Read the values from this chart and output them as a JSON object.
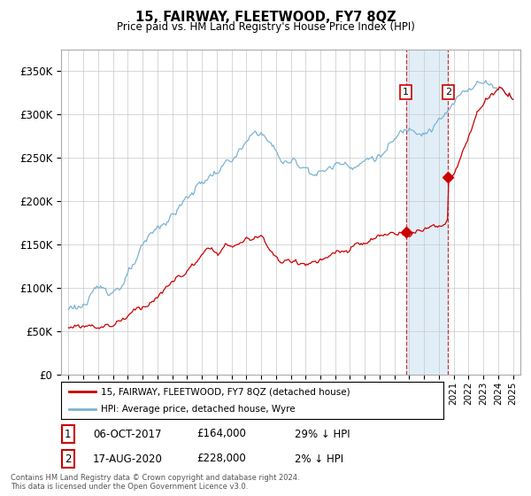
{
  "title": "15, FAIRWAY, FLEETWOOD, FY7 8QZ",
  "subtitle": "Price paid vs. HM Land Registry's House Price Index (HPI)",
  "hpi_color": "#7ab3d4",
  "price_color": "#cc0000",
  "sale1_date": 2017.77,
  "sale1_price": 164000,
  "sale1_label": "1",
  "sale2_date": 2020.63,
  "sale2_price": 228000,
  "sale2_label": "2",
  "ylim": [
    0,
    375000
  ],
  "xlim_start": 1994.5,
  "xlim_end": 2025.5,
  "legend_line1": "15, FAIRWAY, FLEETWOOD, FY7 8QZ (detached house)",
  "legend_line2": "HPI: Average price, detached house, Wyre",
  "footer_line1": "Contains HM Land Registry data © Crown copyright and database right 2024.",
  "footer_line2": "This data is licensed under the Open Government Licence v3.0.",
  "background_color": "#ffffff",
  "plot_bg_color": "#ffffff",
  "grid_color": "#c8c8c8",
  "shade_color": "#daeaf5"
}
